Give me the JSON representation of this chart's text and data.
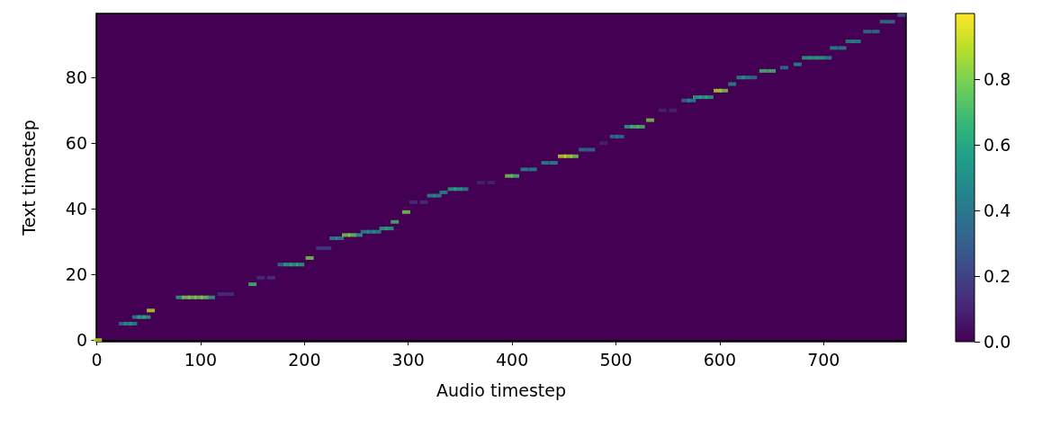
{
  "chart_data": {
    "type": "scatter",
    "xlabel": "Audio timestep",
    "ylabel": "Text timestep",
    "marker": "square",
    "grid": false,
    "xlim": [
      -0.5,
      779.5
    ],
    "ylim": [
      -0.5,
      99.5
    ],
    "xticks": [
      0,
      100,
      200,
      300,
      400,
      500,
      600,
      700
    ],
    "yticks": [
      0,
      20,
      40,
      60,
      80
    ],
    "clim": [
      0,
      1
    ],
    "cticks": [
      {
        "value": 0,
        "label": "0.0"
      },
      {
        "value": 0.2,
        "label": "0.2"
      },
      {
        "value": 0.4,
        "label": "0.4"
      },
      {
        "value": 0.6,
        "label": "0.6"
      },
      {
        "value": 0.8,
        "label": "0.8"
      }
    ],
    "x": [
      1,
      25,
      30,
      35,
      38,
      43,
      48,
      52,
      80,
      86,
      92,
      98,
      104,
      110,
      120,
      128,
      150,
      158,
      168,
      178,
      184,
      190,
      196,
      205,
      215,
      222,
      228,
      234,
      240,
      246,
      252,
      258,
      264,
      270,
      276,
      282,
      287,
      298,
      305,
      315,
      322,
      328,
      334,
      342,
      348,
      354,
      370,
      380,
      397,
      403,
      412,
      420,
      432,
      440,
      448,
      454,
      460,
      468,
      476,
      488,
      498,
      504,
      512,
      518,
      524,
      533,
      545,
      555,
      567,
      573,
      578,
      584,
      590,
      598,
      604,
      612,
      620,
      625,
      632,
      642,
      650,
      662,
      675,
      683,
      690,
      697,
      704,
      710,
      718,
      725,
      732,
      742,
      750,
      758,
      765,
      775
    ],
    "values": [
      0,
      5,
      5,
      5,
      7,
      7,
      7,
      9,
      13,
      13,
      13,
      13,
      13,
      13,
      14,
      14,
      17,
      19,
      19,
      23,
      23,
      23,
      23,
      25,
      28,
      28,
      31,
      31,
      32,
      32,
      32,
      33,
      33,
      33,
      34,
      34,
      36,
      39,
      42,
      42,
      44,
      44,
      45,
      46,
      46,
      46,
      48,
      48,
      50,
      50,
      52,
      52,
      54,
      54,
      56,
      56,
      56,
      58,
      58,
      60,
      62,
      62,
      65,
      65,
      65,
      67,
      70,
      70,
      73,
      73,
      74,
      74,
      74,
      76,
      76,
      78,
      80,
      80,
      80,
      82,
      82,
      83,
      84,
      86,
      86,
      86,
      86,
      89,
      89,
      91,
      91,
      94,
      94,
      97,
      97,
      99
    ],
    "cvalues": [
      0.9,
      0.4,
      0.5,
      0.5,
      0.5,
      0.6,
      0.6,
      0.9,
      0.6,
      0.8,
      0.8,
      0.8,
      0.8,
      0.6,
      0.15,
      0.15,
      0.7,
      0.15,
      0.15,
      0.4,
      0.6,
      0.6,
      0.6,
      0.8,
      0.2,
      0.2,
      0.5,
      0.5,
      0.8,
      0.8,
      0.6,
      0.5,
      0.5,
      0.5,
      0.6,
      0.6,
      0.7,
      0.8,
      0.15,
      0.15,
      0.5,
      0.5,
      0.5,
      0.6,
      0.6,
      0.5,
      0.1,
      0.1,
      0.8,
      0.7,
      0.5,
      0.5,
      0.5,
      0.5,
      0.9,
      0.9,
      0.8,
      0.4,
      0.4,
      0.1,
      0.4,
      0.4,
      0.6,
      0.7,
      0.7,
      0.8,
      0.1,
      0.1,
      0.4,
      0.5,
      0.6,
      0.6,
      0.6,
      0.9,
      0.8,
      0.5,
      0.5,
      0.5,
      0.4,
      0.7,
      0.7,
      0.4,
      0.5,
      0.6,
      0.6,
      0.6,
      0.5,
      0.5,
      0.5,
      0.5,
      0.5,
      0.4,
      0.4,
      0.4,
      0.4,
      0.3
    ]
  }
}
